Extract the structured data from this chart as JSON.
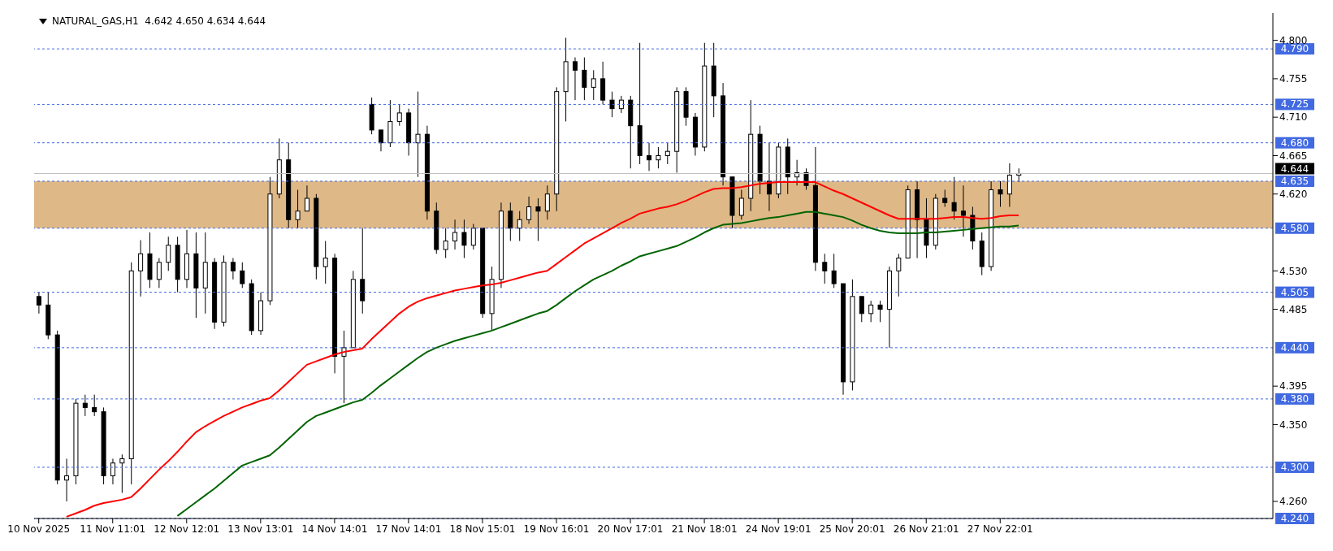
{
  "chart_data": {
    "type": "candlestick",
    "title": "NATURAL_GAS,H1  4.642 4.650 4.634 4.644",
    "categories": [
      "10 Nov 2025",
      null,
      null,
      null,
      null,
      null,
      null,
      null,
      "11 Nov 11:01",
      null,
      null,
      null,
      null,
      null,
      null,
      null,
      "12 Nov 12:01",
      null,
      null,
      null,
      null,
      null,
      null,
      null,
      "13 Nov 13:01",
      null,
      null,
      null,
      null,
      null,
      null,
      null,
      "14 Nov 14:01",
      null,
      null,
      null,
      null,
      null,
      null,
      null,
      "17 Nov 14:01",
      null,
      null,
      null,
      null,
      null,
      null,
      null,
      "18 Nov 15:01",
      null,
      null,
      null,
      null,
      null,
      null,
      null,
      "19 Nov 16:01",
      null,
      null,
      null,
      null,
      null,
      null,
      null,
      "20 Nov 17:01",
      null,
      null,
      null,
      null,
      null,
      null,
      null,
      "21 Nov 18:01",
      null,
      null,
      null,
      null,
      null,
      null,
      null,
      "24 Nov 19:01",
      null,
      null,
      null,
      null,
      null,
      null,
      null,
      "25 Nov 20:01",
      null,
      null,
      null,
      null,
      null,
      null,
      null,
      "26 Nov 21:01",
      null,
      null,
      null,
      null,
      null,
      null,
      null,
      "27 Nov 22:01",
      null,
      null,
      null,
      null,
      null,
      null,
      null,
      null,
      null,
      null,
      null,
      null,
      null,
      null,
      null,
      null,
      null,
      null,
      null,
      null,
      null,
      null,
      null,
      null,
      null,
      null,
      null,
      null,
      null
    ],
    "ohlc": [
      [
        4.5,
        4.505,
        4.48,
        4.49
      ],
      [
        4.49,
        4.505,
        4.45,
        4.455
      ],
      [
        4.455,
        4.46,
        4.28,
        4.285
      ],
      [
        4.285,
        4.31,
        4.26,
        4.29
      ],
      [
        4.29,
        4.38,
        4.28,
        4.375
      ],
      [
        4.375,
        4.385,
        4.36,
        4.37
      ],
      [
        4.37,
        4.385,
        4.36,
        4.365
      ],
      [
        4.365,
        4.37,
        4.28,
        4.29
      ],
      [
        4.29,
        4.31,
        4.28,
        4.305
      ],
      [
        4.305,
        4.315,
        4.27,
        4.31
      ],
      [
        4.31,
        4.54,
        4.28,
        4.53
      ],
      [
        4.53,
        4.566,
        4.5,
        4.55
      ],
      [
        4.55,
        4.575,
        4.51,
        4.52
      ],
      [
        4.52,
        4.545,
        4.51,
        4.54
      ],
      [
        4.54,
        4.57,
        4.53,
        4.56
      ],
      [
        4.56,
        4.57,
        4.505,
        4.52
      ],
      [
        4.52,
        4.578,
        4.51,
        4.55
      ],
      [
        4.55,
        4.575,
        4.475,
        4.51
      ],
      [
        4.51,
        4.575,
        4.48,
        4.54
      ],
      [
        4.54,
        4.545,
        4.462,
        4.47
      ],
      [
        4.47,
        4.548,
        4.465,
        4.54
      ],
      [
        4.54,
        4.545,
        4.52,
        4.53
      ],
      [
        4.53,
        4.54,
        4.51,
        4.515
      ],
      [
        4.515,
        4.52,
        4.455,
        4.46
      ],
      [
        4.46,
        4.505,
        4.455,
        4.495
      ],
      [
        4.495,
        4.64,
        4.49,
        4.62
      ],
      [
        4.62,
        4.685,
        4.615,
        4.66
      ],
      [
        4.66,
        4.68,
        4.58,
        4.59
      ],
      [
        4.59,
        4.625,
        4.58,
        4.6
      ],
      [
        4.6,
        4.63,
        4.6,
        4.615
      ],
      [
        4.615,
        4.62,
        4.52,
        4.535
      ],
      [
        4.535,
        4.565,
        4.515,
        4.545
      ],
      [
        4.545,
        4.55,
        4.41,
        4.43
      ],
      [
        4.43,
        4.46,
        4.375,
        4.44
      ],
      [
        4.44,
        4.53,
        4.44,
        4.52
      ],
      [
        4.52,
        4.58,
        4.48,
        4.495
      ],
      [
        4.725,
        4.733,
        4.69,
        4.695
      ],
      [
        4.695,
        4.695,
        4.67,
        4.68
      ],
      [
        4.68,
        4.73,
        4.675,
        4.705
      ],
      [
        4.705,
        4.725,
        4.7,
        4.715
      ],
      [
        4.715,
        4.72,
        4.665,
        4.68
      ],
      [
        4.68,
        4.74,
        4.64,
        4.69
      ],
      [
        4.69,
        4.7,
        4.59,
        4.6
      ],
      [
        4.6,
        4.61,
        4.55,
        4.555
      ],
      [
        4.555,
        4.58,
        4.545,
        4.565
      ],
      [
        4.565,
        4.59,
        4.555,
        4.575
      ],
      [
        4.575,
        4.59,
        4.545,
        4.56
      ],
      [
        4.56,
        4.585,
        4.555,
        4.58
      ],
      [
        4.58,
        4.58,
        4.475,
        4.48
      ],
      [
        4.48,
        4.535,
        4.46,
        4.52
      ],
      [
        4.52,
        4.61,
        4.51,
        4.6
      ],
      [
        4.6,
        4.61,
        4.565,
        4.58
      ],
      [
        4.58,
        4.6,
        4.565,
        4.59
      ],
      [
        4.59,
        4.617,
        4.585,
        4.605
      ],
      [
        4.605,
        4.615,
        4.565,
        4.6
      ],
      [
        4.6,
        4.63,
        4.59,
        4.62
      ],
      [
        4.62,
        4.745,
        4.6,
        4.74
      ],
      [
        4.74,
        4.803,
        4.705,
        4.775
      ],
      [
        4.775,
        4.78,
        4.73,
        4.765
      ],
      [
        4.765,
        4.78,
        4.73,
        4.745
      ],
      [
        4.745,
        4.765,
        4.73,
        4.755
      ],
      [
        4.755,
        4.775,
        4.725,
        4.73
      ],
      [
        4.73,
        4.74,
        4.71,
        4.72
      ],
      [
        4.72,
        4.735,
        4.715,
        4.73
      ],
      [
        4.73,
        4.735,
        4.65,
        4.7
      ],
      [
        4.7,
        4.797,
        4.655,
        4.665
      ],
      [
        4.665,
        4.68,
        4.647,
        4.66
      ],
      [
        4.66,
        4.675,
        4.65,
        4.665
      ],
      [
        4.665,
        4.68,
        4.655,
        4.67
      ],
      [
        4.67,
        4.745,
        4.645,
        4.74
      ],
      [
        4.74,
        4.745,
        4.7,
        4.71
      ],
      [
        4.71,
        4.715,
        4.665,
        4.675
      ],
      [
        4.675,
        4.797,
        4.67,
        4.77
      ],
      [
        4.77,
        4.797,
        4.71,
        4.735
      ],
      [
        4.735,
        4.75,
        4.63,
        4.64
      ],
      [
        4.64,
        4.64,
        4.58,
        4.595
      ],
      [
        4.595,
        4.625,
        4.59,
        4.615
      ],
      [
        4.615,
        4.73,
        4.6,
        4.69
      ],
      [
        4.69,
        4.7,
        4.62,
        4.635
      ],
      [
        4.635,
        4.68,
        4.6,
        4.62
      ],
      [
        4.62,
        4.68,
        4.615,
        4.675
      ],
      [
        4.675,
        4.685,
        4.62,
        4.64
      ],
      [
        4.64,
        4.66,
        4.63,
        4.645
      ],
      [
        4.645,
        4.65,
        4.625,
        4.63
      ],
      [
        4.63,
        4.675,
        4.53,
        4.54
      ],
      [
        4.54,
        4.55,
        4.515,
        4.53
      ],
      [
        4.53,
        4.55,
        4.51,
        4.515
      ],
      [
        4.515,
        4.515,
        4.385,
        4.4
      ],
      [
        4.4,
        4.52,
        4.39,
        4.5
      ],
      [
        4.5,
        4.5,
        4.47,
        4.48
      ],
      [
        4.48,
        4.495,
        4.47,
        4.49
      ],
      [
        4.49,
        4.495,
        4.47,
        4.485
      ],
      [
        4.485,
        4.535,
        4.44,
        4.53
      ],
      [
        4.53,
        4.55,
        4.5,
        4.545
      ],
      [
        4.545,
        4.63,
        4.545,
        4.625
      ],
      [
        4.625,
        4.635,
        4.545,
        4.59
      ],
      [
        4.59,
        4.615,
        4.545,
        4.56
      ],
      [
        4.56,
        4.62,
        4.555,
        4.615
      ],
      [
        4.615,
        4.625,
        4.605,
        4.61
      ],
      [
        4.61,
        4.64,
        4.59,
        4.6
      ],
      [
        4.6,
        4.63,
        4.57,
        4.595
      ],
      [
        4.595,
        4.605,
        4.555,
        4.565
      ],
      [
        4.565,
        4.575,
        4.525,
        4.535
      ],
      [
        4.535,
        4.635,
        4.53,
        4.625
      ],
      [
        4.625,
        4.635,
        4.605,
        4.62
      ],
      [
        4.62,
        4.656,
        4.605,
        4.642
      ],
      [
        4.642,
        4.65,
        4.634,
        4.644
      ],
      null,
      null,
      null,
      null,
      null,
      null,
      null,
      null,
      null,
      null,
      null,
      null,
      null,
      null,
      null,
      null,
      null,
      null,
      null,
      null,
      null,
      null,
      null,
      null,
      null,
      null,
      null
    ],
    "color": "#000000",
    "series": [
      {
        "type": "line",
        "color": "#ff0000",
        "values": [
          null,
          null,
          null,
          4.242,
          4.246,
          4.25,
          4.255,
          4.258,
          4.26,
          4.262,
          4.265,
          4.275,
          4.286,
          4.297,
          4.307,
          4.318,
          4.33,
          4.341,
          4.348,
          4.354,
          4.36,
          4.365,
          4.37,
          4.374,
          4.378,
          4.381,
          4.39,
          4.4,
          4.41,
          4.42,
          4.424,
          4.428,
          4.432,
          4.435,
          4.437,
          4.439,
          4.45,
          4.46,
          4.47,
          4.48,
          4.488,
          4.494,
          4.498,
          4.501,
          4.504,
          4.507,
          4.509,
          4.511,
          4.513,
          4.514,
          4.516,
          4.519,
          4.522,
          4.525,
          4.528,
          4.53,
          4.538,
          4.546,
          4.554,
          4.562,
          4.568,
          4.574,
          4.58,
          4.586,
          4.591,
          4.597,
          4.6,
          4.603,
          4.605,
          4.608,
          4.612,
          4.617,
          4.622,
          4.626,
          4.627,
          4.627,
          4.628,
          4.63,
          4.632,
          4.633,
          4.634,
          4.634,
          4.634,
          4.634,
          4.634,
          4.629,
          4.624,
          4.62,
          4.615,
          4.61,
          4.605,
          4.6,
          4.595,
          4.591,
          4.591,
          4.591,
          4.591,
          4.591,
          4.592,
          4.593,
          4.593,
          4.592,
          4.591,
          4.592,
          4.594,
          4.595,
          4.595,
          null,
          null,
          null,
          null,
          null,
          null,
          null,
          null,
          null,
          null,
          null,
          null,
          null,
          null,
          null,
          null,
          null,
          null,
          null,
          null,
          null,
          null,
          null,
          null,
          null,
          null,
          null
        ]
      },
      {
        "type": "line",
        "color": "#006400",
        "values": [
          null,
          null,
          null,
          null,
          null,
          null,
          null,
          null,
          null,
          null,
          null,
          null,
          null,
          null,
          null,
          4.243,
          4.251,
          4.259,
          4.267,
          4.275,
          4.284,
          4.293,
          4.302,
          4.306,
          4.31,
          4.314,
          4.323,
          4.333,
          4.343,
          4.353,
          4.36,
          4.364,
          4.368,
          4.372,
          4.376,
          4.379,
          4.387,
          4.396,
          4.404,
          4.412,
          4.42,
          4.428,
          4.435,
          4.44,
          4.444,
          4.448,
          4.451,
          4.454,
          4.457,
          4.46,
          4.464,
          4.468,
          4.472,
          4.476,
          4.48,
          4.483,
          4.49,
          4.498,
          4.506,
          4.513,
          4.52,
          4.525,
          4.53,
          4.536,
          4.541,
          4.547,
          4.55,
          4.553,
          4.556,
          4.559,
          4.564,
          4.569,
          4.575,
          4.58,
          4.584,
          4.585,
          4.586,
          4.588,
          4.59,
          4.592,
          4.593,
          4.595,
          4.597,
          4.599,
          4.599,
          4.597,
          4.595,
          4.593,
          4.589,
          4.584,
          4.58,
          4.577,
          4.575,
          4.574,
          4.574,
          4.574,
          4.575,
          4.575,
          4.576,
          4.577,
          4.578,
          4.579,
          4.58,
          4.581,
          4.582,
          4.582,
          4.583,
          null,
          null,
          null,
          null,
          null,
          null,
          null,
          null,
          null,
          null,
          null,
          null,
          null,
          null,
          null,
          null,
          null,
          null,
          null,
          null,
          null,
          null,
          null,
          null,
          null,
          null,
          null
        ]
      }
    ],
    "ylim": [
      4.24,
      4.832
    ],
    "yticks": [
      {
        "value": 4.8,
        "label": "4.800"
      },
      4.755,
      {
        "value": 4.71,
        "label": "4.710"
      },
      4.665,
      {
        "value": 4.62,
        "label": "4.620"
      },
      {
        "value": 4.53,
        "label": "4.530"
      },
      4.485,
      4.395,
      {
        "value": 4.35,
        "label": "4.350"
      },
      {
        "value": 4.26,
        "label": "4.260"
      }
    ],
    "ref_lines": [
      {
        "axis": "y",
        "value": 4.79,
        "label": "4.790",
        "color": "#4169e1",
        "line_style": "dashed"
      },
      {
        "axis": "y",
        "value": 4.725,
        "label": "4.725",
        "color": "#4169e1",
        "line_style": "dashed"
      },
      {
        "axis": "y",
        "value": 4.68,
        "label": "4.680",
        "color": "#4169e1",
        "line_style": "dashed"
      },
      {
        "axis": "y",
        "value": 4.644,
        "label": "4.644",
        "color": "#c0c0c0",
        "line_style": "solid"
      },
      {
        "axis": "y",
        "value": 4.635,
        "label": "4.635",
        "color": "#4169e1",
        "line_style": "dashed"
      },
      {
        "axis": "y",
        "value": 4.58,
        "label": "4.580",
        "color": "#4169e1",
        "line_style": "dashed"
      },
      {
        "axis": "y",
        "value": 4.505,
        "label": "4.505",
        "color": "#4169e1",
        "line_style": "dashed"
      },
      {
        "axis": "y",
        "value": 4.44,
        "label": "4.440",
        "color": "#4169e1",
        "line_style": "dashed"
      },
      {
        "axis": "y",
        "value": 4.38,
        "label": "4.380",
        "color": "#4169e1",
        "line_style": "dashed"
      },
      {
        "axis": "y",
        "value": 4.3,
        "label": "4.300",
        "color": "#4169e1",
        "line_style": "dashed"
      },
      {
        "axis": "y",
        "value": 4.24,
        "label": "4.240",
        "color": "#4169e1",
        "line_style": "dashed"
      }
    ],
    "bands": [
      {
        "axis": "y",
        "from": 4.58,
        "to": 4.635,
        "color": "#deb887"
      }
    ],
    "grid": false
  }
}
